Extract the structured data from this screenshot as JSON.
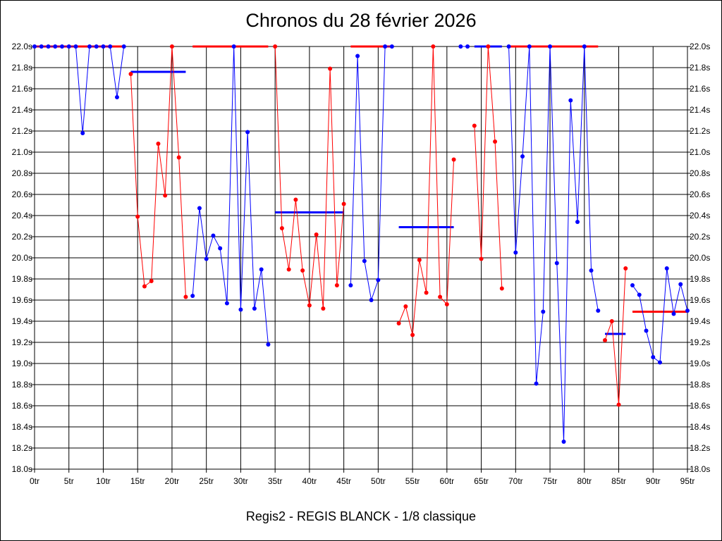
{
  "chart_data": {
    "type": "line",
    "title": "Chronos du 28 février 2026",
    "caption": "Regis2 - REGIS BLANCK - 1/8 classique",
    "x_unit": "tr",
    "y_unit": "s",
    "xlim": [
      0,
      95
    ],
    "ylim": [
      18.0,
      22.0
    ],
    "x_ticks": [
      0,
      5,
      10,
      15,
      20,
      25,
      30,
      35,
      40,
      45,
      50,
      55,
      60,
      65,
      70,
      75,
      80,
      85,
      90,
      95
    ],
    "y_ticks": [
      18.0,
      18.2,
      18.4,
      18.6,
      18.8,
      19.0,
      19.2,
      19.4,
      19.6,
      19.8,
      20.0,
      20.2,
      20.4,
      20.6,
      20.8,
      21.0,
      21.2,
      21.4,
      21.6,
      21.8,
      22.0
    ],
    "grid": true,
    "colors": {
      "blue": "#0000ff",
      "red": "#ff0000"
    },
    "series": [
      {
        "color": "blue",
        "x": [
          0,
          1,
          2,
          3,
          4,
          5,
          6,
          7,
          8,
          9,
          10,
          11,
          12,
          13
        ],
        "y": [
          22.0,
          22.0,
          22.0,
          22.0,
          22.0,
          22.0,
          22.0,
          21.18,
          22.0,
          22.0,
          22.0,
          22.0,
          21.52,
          22.0
        ],
        "mean": 22.0
      },
      {
        "color": "red",
        "x": [
          14,
          15,
          16,
          17,
          18,
          19,
          20,
          21,
          22
        ],
        "y": [
          21.74,
          20.39,
          19.73,
          19.78,
          21.08,
          20.59,
          22.0,
          20.95,
          19.63
        ],
        "mean": 21.76
      },
      {
        "color": "blue",
        "x": [
          23,
          24,
          25,
          26,
          27,
          28,
          29,
          30,
          31,
          32,
          33,
          34
        ],
        "y": [
          19.64,
          20.47,
          19.99,
          20.21,
          20.09,
          19.57,
          22.0,
          19.51,
          21.19,
          19.52,
          19.89,
          19.18
        ],
        "mean": 22.0
      },
      {
        "color": "red",
        "x": [
          35,
          36,
          37,
          38,
          39,
          40,
          41,
          42,
          43,
          44,
          45
        ],
        "y": [
          22.0,
          20.28,
          19.89,
          20.55,
          19.88,
          19.55,
          20.22,
          19.52,
          21.79,
          19.74,
          20.51
        ],
        "mean": 20.43
      },
      {
        "color": "blue",
        "x": [
          46,
          47,
          48,
          49,
          50,
          51,
          52
        ],
        "y": [
          19.74,
          21.91,
          19.97,
          19.6,
          19.79,
          22.0,
          22.0
        ],
        "mean": 22.0
      },
      {
        "color": "red",
        "x": [
          53,
          54,
          55,
          56,
          57,
          58,
          59,
          60,
          61
        ],
        "y": [
          19.38,
          19.54,
          19.27,
          19.98,
          19.67,
          22.0,
          19.63,
          19.56,
          20.93
        ],
        "mean": 20.29
      },
      {
        "color": "blue",
        "x": [
          62,
          63
        ],
        "y": [
          22.0,
          22.0
        ],
        "mean": 22.0
      },
      {
        "color": "red",
        "x": [
          64,
          65,
          66,
          67,
          68
        ],
        "y": [
          21.25,
          19.99,
          22.0,
          21.1,
          19.71
        ],
        "mean": 22.0
      },
      {
        "color": "blue",
        "x": [
          69,
          70,
          71,
          72,
          73,
          74,
          75,
          76,
          77,
          78,
          79,
          80,
          81,
          82
        ],
        "y": [
          22.0,
          20.05,
          20.96,
          22.0,
          18.81,
          19.49,
          22.0,
          19.95,
          18.26,
          21.49,
          20.34,
          22.0,
          19.88,
          19.5
        ],
        "mean": 22.0
      },
      {
        "color": "red",
        "x": [
          83,
          84,
          85,
          86
        ],
        "y": [
          19.22,
          19.4,
          18.61,
          19.9
        ],
        "mean": 19.28
      },
      {
        "color": "blue",
        "x": [
          87,
          88,
          89,
          90,
          91,
          92,
          93,
          94,
          95
        ],
        "y": [
          19.74,
          19.65,
          19.31,
          19.06,
          19.01,
          19.9,
          19.47,
          19.75,
          19.5
        ],
        "mean": 19.49
      }
    ],
    "mean_bars": [
      {
        "color": "red",
        "x": [
          0,
          13
        ],
        "y": 22.0
      },
      {
        "color": "blue",
        "x": [
          14,
          22
        ],
        "y": 21.76
      },
      {
        "color": "red",
        "x": [
          23,
          34
        ],
        "y": 22.0
      },
      {
        "color": "blue",
        "x": [
          35,
          45
        ],
        "y": 20.43
      },
      {
        "color": "red",
        "x": [
          46,
          52
        ],
        "y": 22.0
      },
      {
        "color": "blue",
        "x": [
          53,
          61
        ],
        "y": 20.29
      },
      {
        "color": "blue",
        "x": [
          64,
          68
        ],
        "y": 22.0
      },
      {
        "color": "red",
        "x": [
          69,
          82
        ],
        "y": 22.0
      },
      {
        "color": "blue",
        "x": [
          83,
          86
        ],
        "y": 19.28
      },
      {
        "color": "red",
        "x": [
          87,
          95
        ],
        "y": 19.49
      }
    ]
  }
}
